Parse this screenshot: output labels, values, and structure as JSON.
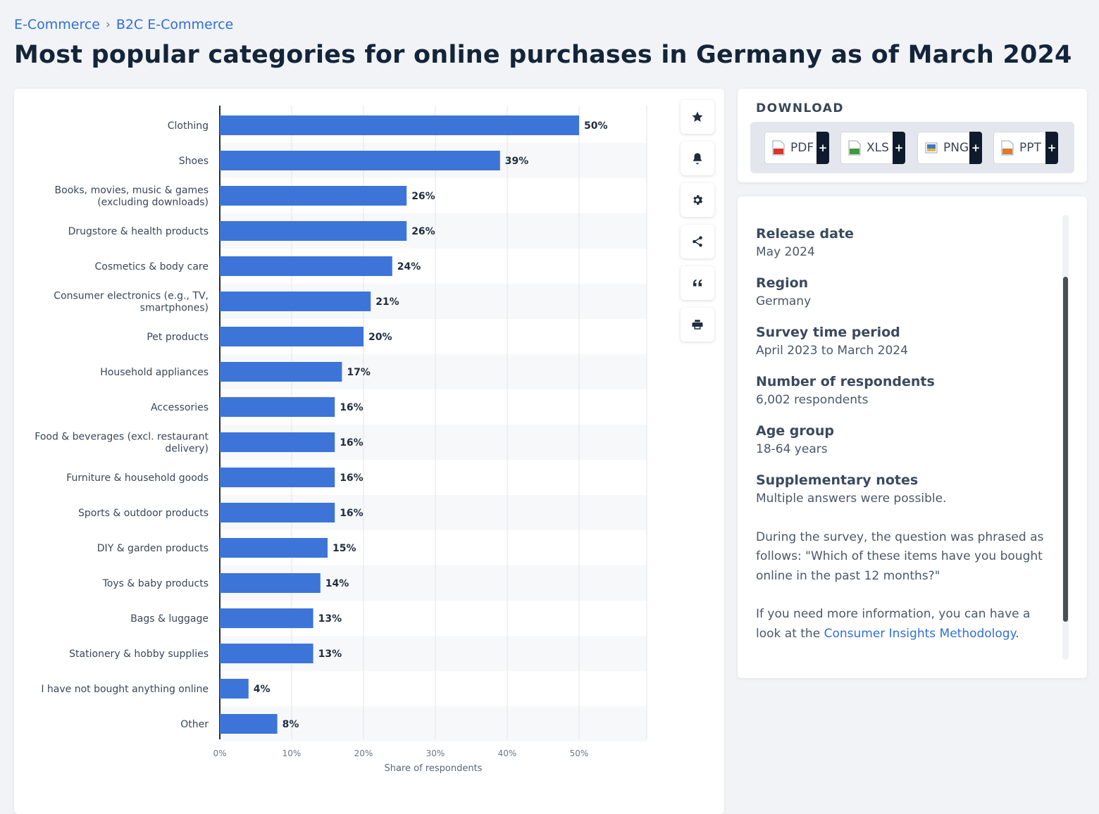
{
  "breadcrumb": {
    "items": [
      "E-Commerce",
      "B2C E-Commerce"
    ],
    "separator": "›"
  },
  "page_title": "Most popular categories for online purchases in Germany as of March 2024",
  "toolbar": {
    "icons": [
      "star-icon",
      "bell-icon",
      "gear-icon",
      "share-icon",
      "quote-icon",
      "print-icon"
    ]
  },
  "download": {
    "title": "DOWNLOAD",
    "buttons": [
      {
        "label": "PDF",
        "icon": "pdf-file-icon",
        "color": "#d9342b"
      },
      {
        "label": "XLS",
        "icon": "xls-file-icon",
        "color": "#3c9b3a"
      },
      {
        "label": "PNG",
        "icon": "png-file-icon",
        "color": "#3f79c7"
      },
      {
        "label": "PPT",
        "icon": "ppt-file-icon",
        "color": "#e2762b"
      }
    ],
    "plus": "+"
  },
  "info": {
    "fields": [
      {
        "key": "Release date",
        "value": "May 2024"
      },
      {
        "key": "Region",
        "value": "Germany"
      },
      {
        "key": "Survey time period",
        "value": "April 2023 to March 2024"
      },
      {
        "key": "Number of respondents",
        "value": "6,002 respondents"
      },
      {
        "key": "Age group",
        "value": "18-64 years"
      }
    ],
    "notes_key": "Supplementary notes",
    "notes_line1": "Multiple answers were possible.",
    "notes_line2": "During the survey, the question was phrased as follows: \"Which of these items have you bought online in the past 12 months?\"",
    "notes_line3_prefix": "If you need more information, you can have a look at the ",
    "notes_link": "Consumer Insights Methodology",
    "notes_line3_suffix": "."
  },
  "colors": {
    "bar": "#3d74d8",
    "accent": "#2f6fd6"
  },
  "chart_data": {
    "type": "bar",
    "orientation": "horizontal",
    "categories": [
      "Clothing",
      "Shoes",
      "Books, movies, music & games\n(excluding downloads)",
      "Drugstore & health products",
      "Cosmetics & body care",
      "Consumer electronics (e.g., TV,\nsmartphones)",
      "Pet products",
      "Household appliances",
      "Accessories",
      "Food & beverages (excl. restaurant\ndelivery)",
      "Furniture & household goods",
      "Sports & outdoor products",
      "DIY & garden products",
      "Toys & baby products",
      "Bags & luggage",
      "Stationery & hobby supplies",
      "I have not bought anything online",
      "Other"
    ],
    "values": [
      50,
      39,
      26,
      26,
      24,
      21,
      20,
      17,
      16,
      16,
      16,
      16,
      15,
      14,
      13,
      13,
      4,
      8
    ],
    "value_suffix": "%",
    "xlabel": "Share of respondents",
    "xticks": [
      "0%",
      "10%",
      "20%",
      "30%",
      "40%",
      "50%"
    ],
    "xlim": [
      0,
      60
    ],
    "grid": true
  }
}
